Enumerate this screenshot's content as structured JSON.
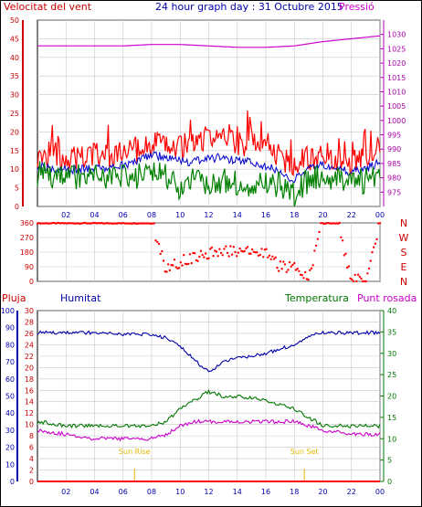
{
  "header": {
    "left_label": "Velocitat del vent",
    "title": "24 hour graph day : 31 Octubre 2015",
    "right_label": "Pressió"
  },
  "footer_labels": {
    "left_1": "Pluja",
    "left_2": "Humitat",
    "right_1": "Temperatura",
    "right_2": "Punt rosada"
  },
  "colors": {
    "wind_speed": "#ff0000",
    "wind_avg": "#0000cc",
    "wind_gust": "#008000",
    "pressure": "#cc00cc",
    "humidity": "#0000aa",
    "temperature": "#007700",
    "dewpoint": "#cc00cc",
    "rain": "#ff0000",
    "sun": "#e6b800",
    "grid": "#c8c8c8",
    "axis_text_left": "#cc0000",
    "axis_text_right": "#aa00aa",
    "axis_text_green": "#007700",
    "axis_text_blue": "#0000aa"
  },
  "chart_data": [
    {
      "type": "line",
      "name": "wind-pressure",
      "x_ticks": [
        "02",
        "04",
        "06",
        "08",
        "10",
        "12",
        "14",
        "16",
        "18",
        "20",
        "22",
        "00"
      ],
      "ylim": [
        0,
        50
      ],
      "y_ticks": [
        0,
        5,
        10,
        15,
        20,
        25,
        30,
        35,
        40,
        45,
        50
      ],
      "y2lim": [
        970,
        1035
      ],
      "y2_ticks": [
        975,
        980,
        985,
        990,
        995,
        1000,
        1005,
        1010,
        1015,
        1020,
        1025,
        1030
      ],
      "series": [
        {
          "key": "speed",
          "hours": [
            0,
            1,
            2,
            3,
            4,
            5,
            6,
            7,
            8,
            9,
            10,
            11,
            12,
            13,
            14,
            15,
            16,
            17,
            18,
            19,
            20,
            21,
            22,
            23,
            24
          ],
          "values": [
            14,
            14,
            13,
            13,
            14,
            13,
            14,
            15,
            17,
            16,
            16,
            17,
            19,
            18,
            17,
            17,
            15,
            13,
            11,
            13,
            14,
            13,
            12,
            14,
            16
          ]
        },
        {
          "key": "avg",
          "hours": [
            0,
            1,
            2,
            3,
            4,
            5,
            6,
            7,
            8,
            9,
            10,
            11,
            12,
            13,
            14,
            15,
            16,
            17,
            18,
            19,
            20,
            21,
            22,
            23,
            24
          ],
          "values": [
            11,
            10,
            10,
            10,
            10,
            10,
            11,
            12,
            14,
            13,
            12,
            12,
            13,
            13,
            12,
            12,
            11,
            9,
            7,
            10,
            11,
            10,
            9,
            10,
            12
          ]
        },
        {
          "key": "gust",
          "hours": [
            0,
            1,
            2,
            3,
            4,
            5,
            6,
            7,
            8,
            9,
            10,
            11,
            12,
            13,
            14,
            15,
            16,
            17,
            18,
            19,
            20,
            21,
            22,
            23,
            24
          ],
          "values": [
            9,
            8,
            8,
            8,
            8,
            7,
            8,
            8,
            9,
            8,
            5,
            7,
            6,
            7,
            6,
            5,
            6,
            6,
            3,
            7,
            8,
            8,
            6,
            7,
            8
          ]
        },
        {
          "key": "pressure",
          "axis": "y2",
          "hours": [
            0,
            2,
            4,
            6,
            8,
            10,
            12,
            14,
            16,
            18,
            20,
            22,
            24
          ],
          "values": [
            1026,
            1026,
            1026,
            1026,
            1026.5,
            1026.5,
            1026,
            1025.5,
            1025.5,
            1026,
            1027.5,
            1028.5,
            1029.5
          ]
        }
      ]
    },
    {
      "type": "scatter",
      "name": "wind-direction",
      "ylim": [
        0,
        360
      ],
      "y_ticks": [
        0,
        90,
        180,
        270,
        360
      ],
      "direction_labels": [
        "N",
        "W",
        "S",
        "E",
        "N"
      ],
      "series": [
        {
          "key": "direction",
          "hours": [
            0,
            1,
            2,
            3,
            4,
            5,
            6,
            7,
            8,
            9,
            10,
            11,
            12,
            13,
            14,
            15,
            16,
            17,
            18,
            19,
            20,
            21,
            22,
            23,
            24
          ],
          "values": [
            360,
            360,
            360,
            360,
            360,
            360,
            360,
            360,
            360,
            80,
            120,
            150,
            170,
            190,
            180,
            185,
            170,
            90,
            90,
            20,
            360,
            360,
            10,
            10,
            360
          ]
        }
      ]
    },
    {
      "type": "line",
      "name": "humidity-temperature",
      "x_ticks": [
        "02",
        "04",
        "06",
        "08",
        "10",
        "12",
        "14",
        "16",
        "18",
        "20",
        "22",
        "00"
      ],
      "sun_labels": {
        "rise": "Sun Rise",
        "set": "Sun Set"
      },
      "sunrise_hour": 6.8,
      "sunset_hour": 18.7,
      "y_rain_ticks": [
        0,
        2,
        4,
        6,
        8,
        10,
        12,
        14,
        16,
        18,
        20,
        22,
        24,
        26,
        28,
        30
      ],
      "y_rain_lim": [
        0,
        30
      ],
      "y_hum_ticks": [
        0,
        10,
        20,
        30,
        40,
        50,
        60,
        70,
        80,
        90,
        100
      ],
      "y_hum_lim": [
        0,
        100
      ],
      "y_temp_ticks": [
        0,
        5,
        10,
        15,
        20,
        25,
        30,
        35,
        40
      ],
      "y_temp_lim": [
        0,
        40
      ],
      "series": [
        {
          "key": "humidity",
          "axis": "hum",
          "hours": [
            0,
            2,
            4,
            6,
            8,
            9,
            10,
            11,
            12,
            13,
            14,
            16,
            18,
            19,
            20,
            22,
            24
          ],
          "values": [
            87,
            87,
            87,
            86,
            86,
            84,
            79,
            71,
            64,
            70,
            72,
            75,
            80,
            85,
            87,
            87,
            87
          ]
        },
        {
          "key": "temperature",
          "axis": "temp",
          "hours": [
            0,
            2,
            4,
            6,
            8,
            9,
            10,
            11,
            12,
            13,
            14,
            16,
            18,
            19,
            20,
            22,
            24
          ],
          "values": [
            14,
            13,
            13,
            13,
            13,
            14,
            17,
            19,
            21,
            20,
            20,
            19,
            17,
            15,
            13,
            13,
            13
          ]
        },
        {
          "key": "dewpoint",
          "axis": "temp",
          "hours": [
            0,
            2,
            4,
            6,
            8,
            9,
            10,
            11,
            12,
            13,
            14,
            16,
            18,
            19,
            20,
            22,
            24
          ],
          "values": [
            12,
            11,
            10,
            10,
            10,
            11,
            13,
            14,
            14,
            14,
            14,
            14,
            14,
            13,
            12,
            11,
            11
          ]
        },
        {
          "key": "rain",
          "axis": "rain",
          "hours": [
            0,
            24
          ],
          "values": [
            0,
            0
          ]
        }
      ]
    }
  ]
}
